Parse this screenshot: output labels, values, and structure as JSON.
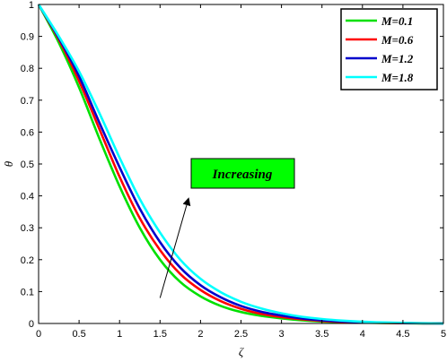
{
  "chart_data": {
    "type": "line",
    "title": "",
    "xlabel": "ζ",
    "ylabel": "θ",
    "xlim": [
      0,
      5
    ],
    "ylim": [
      0,
      1
    ],
    "xticks": [
      "0",
      "0.5",
      "1",
      "1.5",
      "2",
      "2.5",
      "3",
      "3.5",
      "4",
      "4.5",
      "5"
    ],
    "yticks": [
      "0",
      "0.1",
      "0.2",
      "0.3",
      "0.4",
      "0.5",
      "0.6",
      "0.7",
      "0.8",
      "0.9",
      "1"
    ],
    "grid": false,
    "legend_position": "top-right",
    "x": [
      0,
      0.25,
      0.5,
      0.75,
      1.0,
      1.25,
      1.5,
      1.75,
      2.0,
      2.25,
      2.5,
      2.75,
      3.0,
      3.25,
      3.5,
      3.75,
      4.0,
      4.25,
      4.5,
      4.75,
      5.0
    ],
    "series": [
      {
        "name": "M=0.1",
        "color": "#00e000",
        "values": [
          1,
          0.88,
          0.74,
          0.58,
          0.43,
          0.3,
          0.2,
          0.13,
          0.085,
          0.055,
          0.036,
          0.024,
          0.016,
          0.01,
          0.006,
          0.004,
          0.0025,
          0.0015,
          0.0008,
          0.0003,
          0
        ]
      },
      {
        "name": "M=0.6",
        "color": "#ff0000",
        "values": [
          1,
          0.89,
          0.76,
          0.61,
          0.46,
          0.33,
          0.23,
          0.155,
          0.105,
          0.07,
          0.046,
          0.03,
          0.02,
          0.013,
          0.008,
          0.005,
          0.003,
          0.0018,
          0.001,
          0.0004,
          0
        ]
      },
      {
        "name": "M=1.2",
        "color": "#0000cc",
        "values": [
          1,
          0.895,
          0.775,
          0.63,
          0.49,
          0.36,
          0.255,
          0.175,
          0.12,
          0.082,
          0.055,
          0.037,
          0.025,
          0.016,
          0.01,
          0.0065,
          0.004,
          0.0025,
          0.0014,
          0.0006,
          0
        ]
      },
      {
        "name": "M=1.8",
        "color": "#00ffff",
        "values": [
          1,
          0.9,
          0.79,
          0.66,
          0.52,
          0.39,
          0.285,
          0.2,
          0.14,
          0.098,
          0.068,
          0.047,
          0.032,
          0.021,
          0.014,
          0.009,
          0.0055,
          0.0033,
          0.0018,
          0.0008,
          0
        ]
      }
    ],
    "annotations": [
      {
        "text": "Increasing",
        "box_color": "#00ff00",
        "arrow_from": [
          1.5,
          0.08
        ],
        "arrow_to": [
          1.85,
          0.39
        ]
      }
    ]
  }
}
